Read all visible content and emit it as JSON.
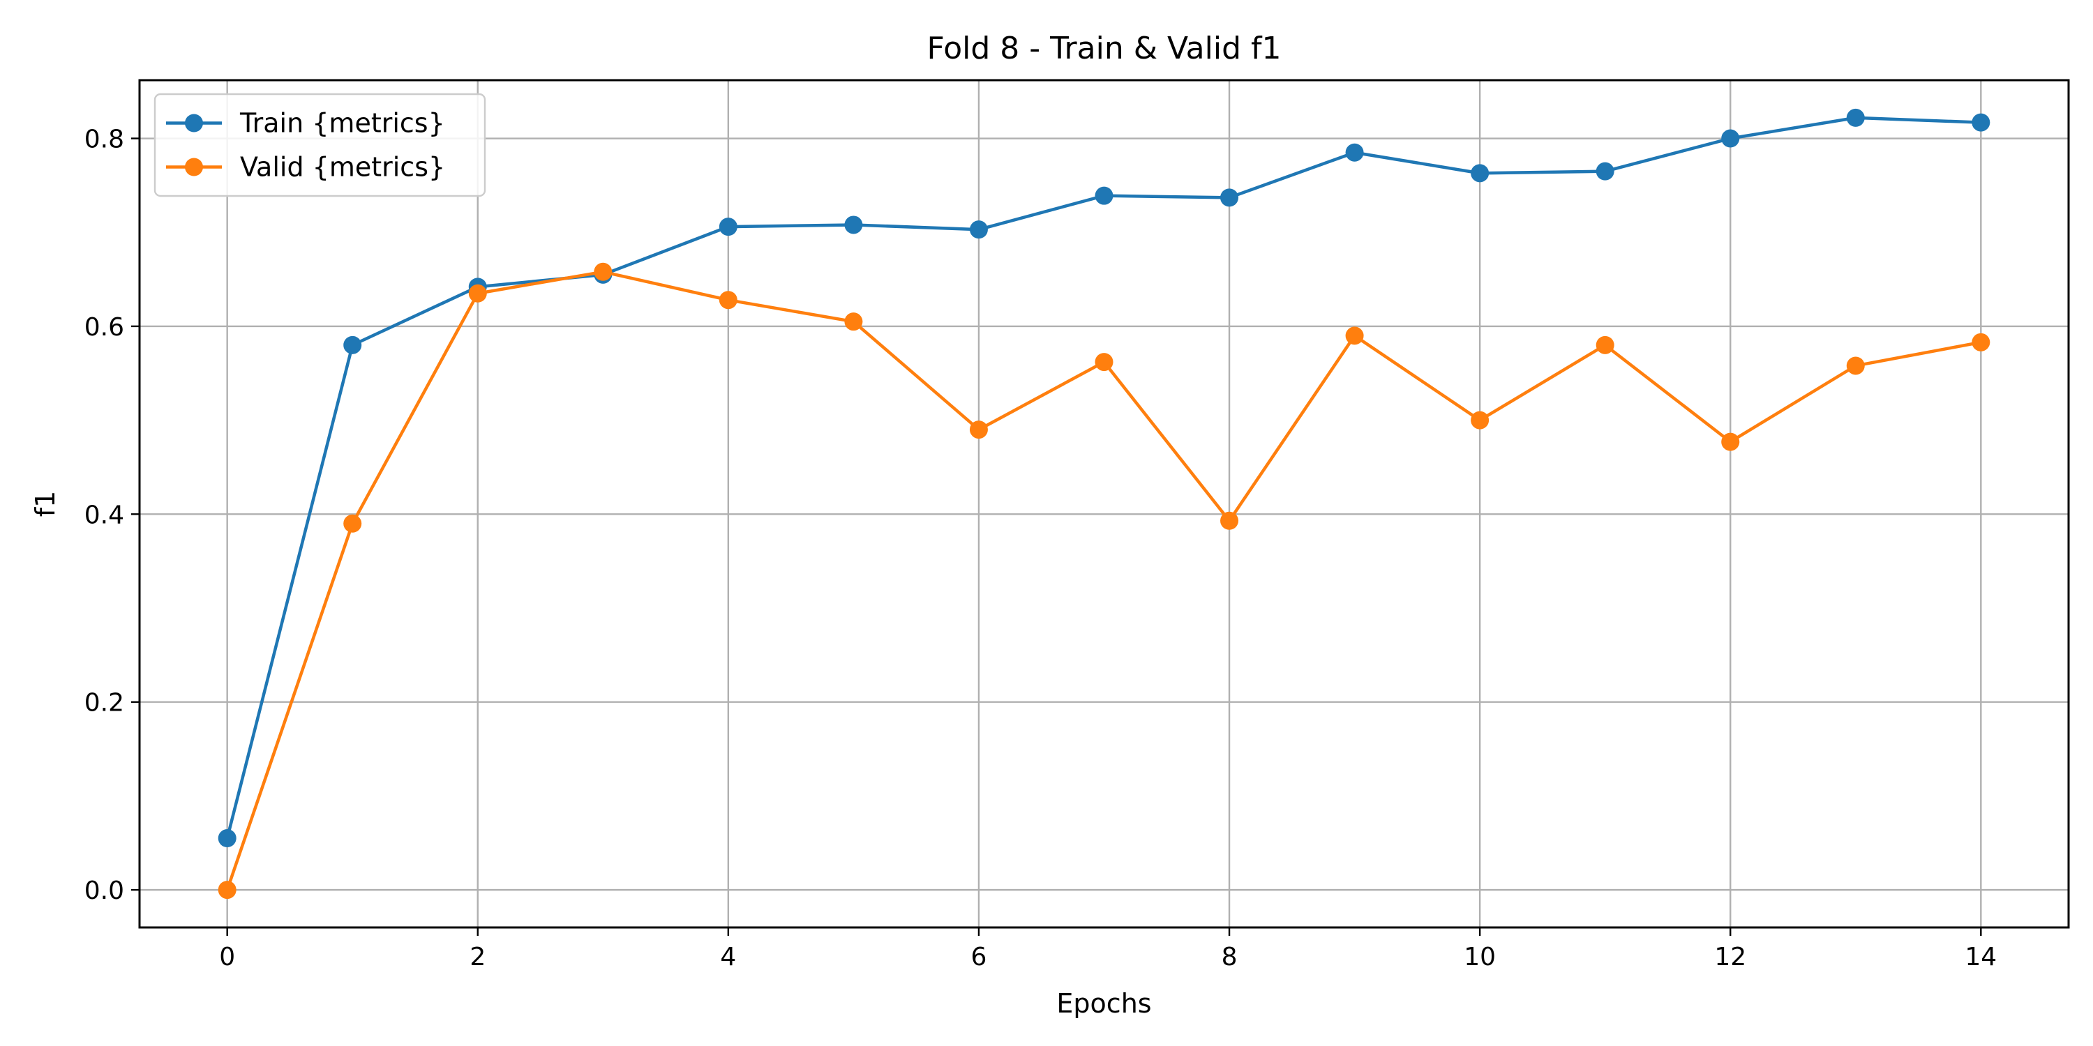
{
  "chart_data": {
    "type": "line",
    "title": "Fold 8 - Train & Valid f1",
    "xlabel": "Epochs",
    "ylabel": "f1",
    "x": [
      0,
      1,
      2,
      3,
      4,
      5,
      6,
      7,
      8,
      9,
      10,
      11,
      12,
      13,
      14
    ],
    "xlim": [
      -0.7,
      14.7
    ],
    "ylim": [
      -0.04,
      0.862
    ],
    "xticks": [
      0,
      2,
      4,
      6,
      8,
      10,
      12,
      14
    ],
    "xtick_labels": [
      "0",
      "2",
      "4",
      "6",
      "8",
      "10",
      "12",
      "14"
    ],
    "yticks": [
      0.0,
      0.2,
      0.4,
      0.6,
      0.8
    ],
    "ytick_labels": [
      "0.0",
      "0.2",
      "0.4",
      "0.6",
      "0.8"
    ],
    "grid": true,
    "legend_position": "top-left",
    "series": [
      {
        "name": "Train {metrics}",
        "color": "#1f77b4",
        "marker": "circle",
        "values": [
          0.055,
          0.58,
          0.642,
          0.655,
          0.706,
          0.708,
          0.703,
          0.739,
          0.737,
          0.785,
          0.763,
          0.765,
          0.8,
          0.822,
          0.817
        ]
      },
      {
        "name": "Valid {metrics}",
        "color": "#ff7f0e",
        "marker": "circle",
        "values": [
          0.0,
          0.39,
          0.635,
          0.658,
          0.628,
          0.605,
          0.49,
          0.562,
          0.393,
          0.59,
          0.5,
          0.58,
          0.477,
          0.558,
          0.583
        ]
      }
    ]
  }
}
